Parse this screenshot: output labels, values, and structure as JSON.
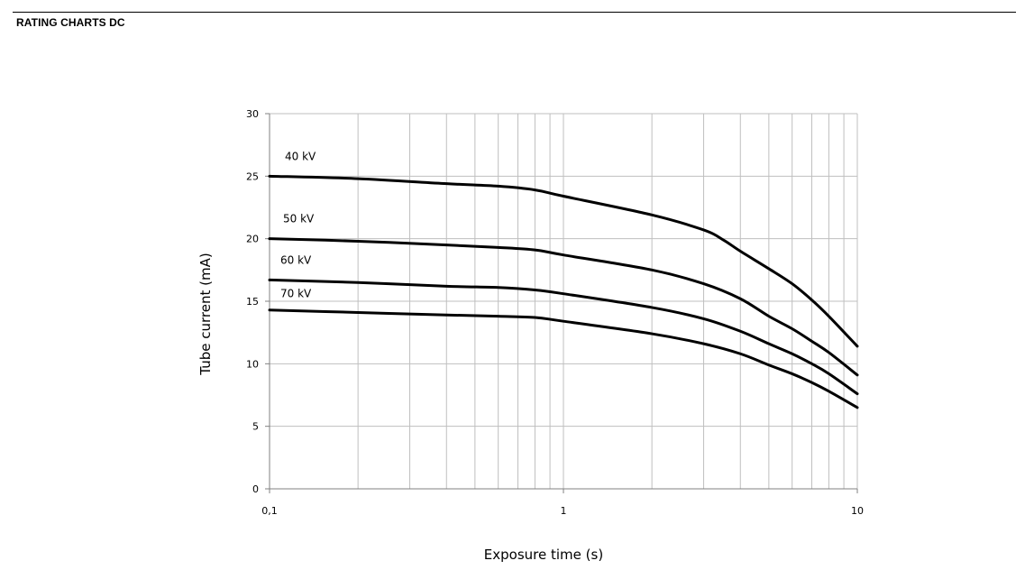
{
  "page": {
    "title": "RATING CHARTS DC"
  },
  "chart_data": {
    "type": "line",
    "xscale": "log",
    "xlim": [
      0.1,
      10
    ],
    "ylim": [
      0,
      30
    ],
    "xlabel": "Exposure time (s)",
    "ylabel": "Tube current (mA)",
    "x_ticks": [
      0.1,
      1,
      10
    ],
    "x_tick_labels": [
      "0,1",
      "1",
      "10"
    ],
    "y_ticks": [
      0,
      5,
      10,
      15,
      20,
      25,
      30
    ],
    "y_tick_labels": [
      "0",
      "5",
      "10",
      "15",
      "20",
      "25",
      "30"
    ],
    "grid": true,
    "line_color": "#000000",
    "grid_color": "#bfbfbf",
    "series": [
      {
        "name": "40 kV",
        "x": [
          0.1,
          0.2,
          0.4,
          0.6,
          0.8,
          1,
          2,
          3,
          3.5,
          4,
          5,
          6,
          7,
          8,
          10
        ],
        "y": [
          25,
          24.8,
          24.4,
          24.2,
          23.9,
          23.4,
          21.9,
          20.7,
          19.9,
          19,
          17.6,
          16.4,
          15.1,
          13.8,
          11.4
        ]
      },
      {
        "name": "50 kV",
        "x": [
          0.1,
          0.2,
          0.4,
          0.6,
          0.8,
          1,
          2,
          3,
          4,
          5,
          6,
          7,
          8,
          10
        ],
        "y": [
          20,
          19.8,
          19.5,
          19.3,
          19.1,
          18.7,
          17.5,
          16.4,
          15.2,
          13.8,
          12.8,
          11.8,
          10.9,
          9.1
        ]
      },
      {
        "name": "60 kV",
        "x": [
          0.1,
          0.2,
          0.4,
          0.6,
          0.8,
          1,
          2,
          3,
          4,
          5,
          6,
          7,
          8,
          10
        ],
        "y": [
          16.7,
          16.5,
          16.2,
          16.1,
          15.9,
          15.6,
          14.5,
          13.6,
          12.6,
          11.6,
          10.8,
          10,
          9.2,
          7.6
        ]
      },
      {
        "name": "70 kV",
        "x": [
          0.1,
          0.2,
          0.4,
          0.6,
          0.8,
          1,
          2,
          3,
          4,
          5,
          6,
          7,
          8,
          10
        ],
        "y": [
          14.3,
          14.1,
          13.9,
          13.8,
          13.7,
          13.4,
          12.4,
          11.6,
          10.8,
          9.9,
          9.2,
          8.5,
          7.8,
          6.5
        ]
      }
    ]
  }
}
